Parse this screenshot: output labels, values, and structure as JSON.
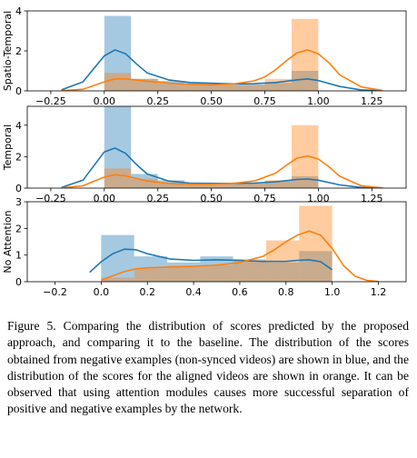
{
  "colors": {
    "blue": "#1f77b4",
    "orange": "#ff7f0e",
    "bar_alpha": 0.4
  },
  "caption": "Figure 5. Comparing the distribution of scores predicted by the proposed approach, and comparing it to the baseline. The distribution of the scores obtained from negative examples (non-synced videos) are shown in blue, and the distribution of the scores for the aligned videos are shown in orange. It can be observed that using attention modules causes more successful separation of positive and negative examples by the network.",
  "chart_data": [
    {
      "type": "histogram+kde",
      "ylabel": "Spatio-Temporal",
      "xlim": [
        -0.36,
        1.41
      ],
      "ylim": [
        0,
        4
      ],
      "xticks": [
        -0.25,
        0.0,
        0.25,
        0.5,
        0.75,
        1.0,
        1.25
      ],
      "xticklabels": [
        "−0.25",
        "0.00",
        "0.25",
        "0.50",
        "0.75",
        "1.00",
        "1.25"
      ],
      "yticks": [
        0,
        2,
        4
      ],
      "yticklabels": [
        "0",
        "2",
        "4"
      ],
      "series": [
        {
          "color": "blue",
          "bins": [
            [
              0.0,
              0.125,
              3.75
            ],
            [
              0.125,
              0.25,
              0.6
            ],
            [
              0.25,
              0.375,
              0.5
            ],
            [
              0.375,
              0.5,
              0.38
            ],
            [
              0.5,
              0.625,
              0.35
            ],
            [
              0.625,
              0.75,
              0.32
            ],
            [
              0.75,
              0.875,
              0.4
            ],
            [
              0.875,
              1.0,
              1.0
            ]
          ],
          "kde_x": [
            -0.2,
            -0.1,
            -0.05,
            0.0,
            0.05,
            0.1,
            0.15,
            0.2,
            0.3,
            0.4,
            0.5,
            0.6,
            0.7,
            0.8,
            0.9,
            0.95,
            1.0,
            1.1,
            1.2,
            1.3
          ],
          "kde_y": [
            0.05,
            0.45,
            1.1,
            1.75,
            2.05,
            1.85,
            1.35,
            0.9,
            0.55,
            0.42,
            0.38,
            0.35,
            0.36,
            0.42,
            0.55,
            0.6,
            0.52,
            0.22,
            0.05,
            0.01
          ]
        },
        {
          "color": "orange",
          "bins": [
            [
              0.0,
              0.125,
              0.9
            ],
            [
              0.125,
              0.25,
              0.6
            ],
            [
              0.25,
              0.375,
              0.35
            ],
            [
              0.375,
              0.5,
              0.3
            ],
            [
              0.5,
              0.625,
              0.28
            ],
            [
              0.625,
              0.75,
              0.3
            ],
            [
              0.75,
              0.875,
              0.6
            ],
            [
              0.875,
              1.0,
              3.6
            ]
          ],
          "kde_x": [
            -0.2,
            -0.1,
            0.0,
            0.05,
            0.1,
            0.2,
            0.3,
            0.4,
            0.5,
            0.6,
            0.7,
            0.75,
            0.8,
            0.85,
            0.9,
            0.95,
            1.0,
            1.05,
            1.1,
            1.2,
            1.3
          ],
          "kde_y": [
            0.01,
            0.08,
            0.45,
            0.6,
            0.6,
            0.48,
            0.38,
            0.33,
            0.3,
            0.34,
            0.5,
            0.7,
            1.05,
            1.5,
            1.9,
            2.05,
            1.85,
            1.4,
            0.8,
            0.2,
            0.02
          ]
        }
      ]
    },
    {
      "type": "histogram+kde",
      "ylabel": "Temporal",
      "xlim": [
        -0.36,
        1.41
      ],
      "ylim": [
        0,
        5.2
      ],
      "xticks": [
        -0.25,
        0.0,
        0.25,
        0.5,
        0.75,
        1.0,
        1.25
      ],
      "xticklabels": [
        "−0.25",
        "0.00",
        "0.25",
        "0.50",
        "0.75",
        "1.00",
        "1.25"
      ],
      "yticks": [
        0,
        2,
        4
      ],
      "yticklabels": [
        "0",
        "2",
        "4"
      ],
      "series": [
        {
          "color": "blue",
          "bins": [
            [
              0.0,
              0.125,
              5.2
            ],
            [
              0.125,
              0.25,
              0.9
            ],
            [
              0.25,
              0.375,
              0.5
            ],
            [
              0.375,
              0.5,
              0.3
            ],
            [
              0.5,
              0.625,
              0.3
            ],
            [
              0.625,
              0.75,
              0.3
            ],
            [
              0.75,
              0.875,
              0.45
            ],
            [
              0.875,
              1.0,
              0.75
            ]
          ],
          "kde_x": [
            -0.2,
            -0.1,
            -0.05,
            0.0,
            0.05,
            0.1,
            0.15,
            0.2,
            0.3,
            0.4,
            0.5,
            0.6,
            0.7,
            0.8,
            0.9,
            0.95,
            1.0,
            1.1,
            1.2,
            1.3
          ],
          "kde_y": [
            0.04,
            0.5,
            1.4,
            2.3,
            2.55,
            2.2,
            1.5,
            0.9,
            0.45,
            0.32,
            0.3,
            0.3,
            0.32,
            0.4,
            0.55,
            0.58,
            0.5,
            0.2,
            0.04,
            0.01
          ]
        },
        {
          "color": "orange",
          "bins": [
            [
              0.0,
              0.125,
              1.25
            ],
            [
              0.125,
              0.25,
              0.6
            ],
            [
              0.25,
              0.375,
              0.3
            ],
            [
              0.375,
              0.5,
              0.25
            ],
            [
              0.5,
              0.625,
              0.25
            ],
            [
              0.625,
              0.75,
              0.3
            ],
            [
              0.75,
              0.875,
              0.5
            ],
            [
              0.875,
              1.0,
              4.0
            ]
          ],
          "kde_x": [
            -0.2,
            -0.1,
            0.0,
            0.05,
            0.1,
            0.2,
            0.3,
            0.4,
            0.5,
            0.6,
            0.7,
            0.8,
            0.85,
            0.9,
            0.95,
            1.0,
            1.05,
            1.1,
            1.2,
            1.3
          ],
          "kde_y": [
            0.01,
            0.15,
            0.7,
            0.85,
            0.78,
            0.45,
            0.3,
            0.25,
            0.25,
            0.3,
            0.45,
            0.95,
            1.45,
            1.9,
            2.05,
            1.85,
            1.35,
            0.75,
            0.15,
            0.01
          ]
        }
      ]
    },
    {
      "type": "histogram+kde",
      "ylabel": "No Attention",
      "xlim": [
        -0.32,
        1.32
      ],
      "ylim": [
        0,
        3
      ],
      "xticks": [
        -0.2,
        0.0,
        0.2,
        0.4,
        0.6,
        0.8,
        1.0,
        1.2
      ],
      "xticklabels": [
        "−0.2",
        "0.0",
        "0.2",
        "0.4",
        "0.6",
        "0.8",
        "1.0",
        "1.2"
      ],
      "yticks": [
        0,
        1,
        2,
        3
      ],
      "yticklabels": [
        "0",
        "1",
        "2",
        "3"
      ],
      "series": [
        {
          "color": "blue",
          "bins": [
            [
              0.0,
              0.143,
              1.75
            ],
            [
              0.143,
              0.286,
              0.95
            ],
            [
              0.286,
              0.429,
              0.72
            ],
            [
              0.429,
              0.571,
              0.95
            ],
            [
              0.571,
              0.714,
              0.8
            ],
            [
              0.714,
              0.857,
              0.72
            ],
            [
              0.857,
              1.0,
              1.15
            ]
          ],
          "kde_x": [
            -0.05,
            0.0,
            0.05,
            0.1,
            0.15,
            0.2,
            0.3,
            0.4,
            0.5,
            0.6,
            0.7,
            0.8,
            0.85,
            0.9,
            0.95,
            1.0
          ],
          "kde_y": [
            0.35,
            0.75,
            1.05,
            1.22,
            1.2,
            1.05,
            0.85,
            0.8,
            0.82,
            0.8,
            0.76,
            0.76,
            0.8,
            0.82,
            0.75,
            0.45
          ]
        },
        {
          "color": "orange",
          "bins": [
            [
              0.0,
              0.143,
              0.15
            ],
            [
              0.143,
              0.286,
              0.5
            ],
            [
              0.286,
              0.429,
              0.6
            ],
            [
              0.429,
              0.571,
              0.62
            ],
            [
              0.571,
              0.714,
              0.85
            ],
            [
              0.714,
              0.857,
              1.55
            ],
            [
              0.857,
              1.0,
              2.85
            ]
          ],
          "kde_x": [
            0.0,
            0.05,
            0.1,
            0.15,
            0.2,
            0.3,
            0.4,
            0.5,
            0.6,
            0.7,
            0.75,
            0.8,
            0.85,
            0.9,
            0.95,
            1.0,
            1.05,
            1.1,
            1.15,
            1.2
          ],
          "kde_y": [
            0.06,
            0.22,
            0.38,
            0.48,
            0.52,
            0.55,
            0.58,
            0.62,
            0.72,
            0.95,
            1.2,
            1.5,
            1.75,
            1.9,
            1.75,
            1.25,
            0.6,
            0.2,
            0.05,
            0.01
          ]
        }
      ]
    }
  ]
}
